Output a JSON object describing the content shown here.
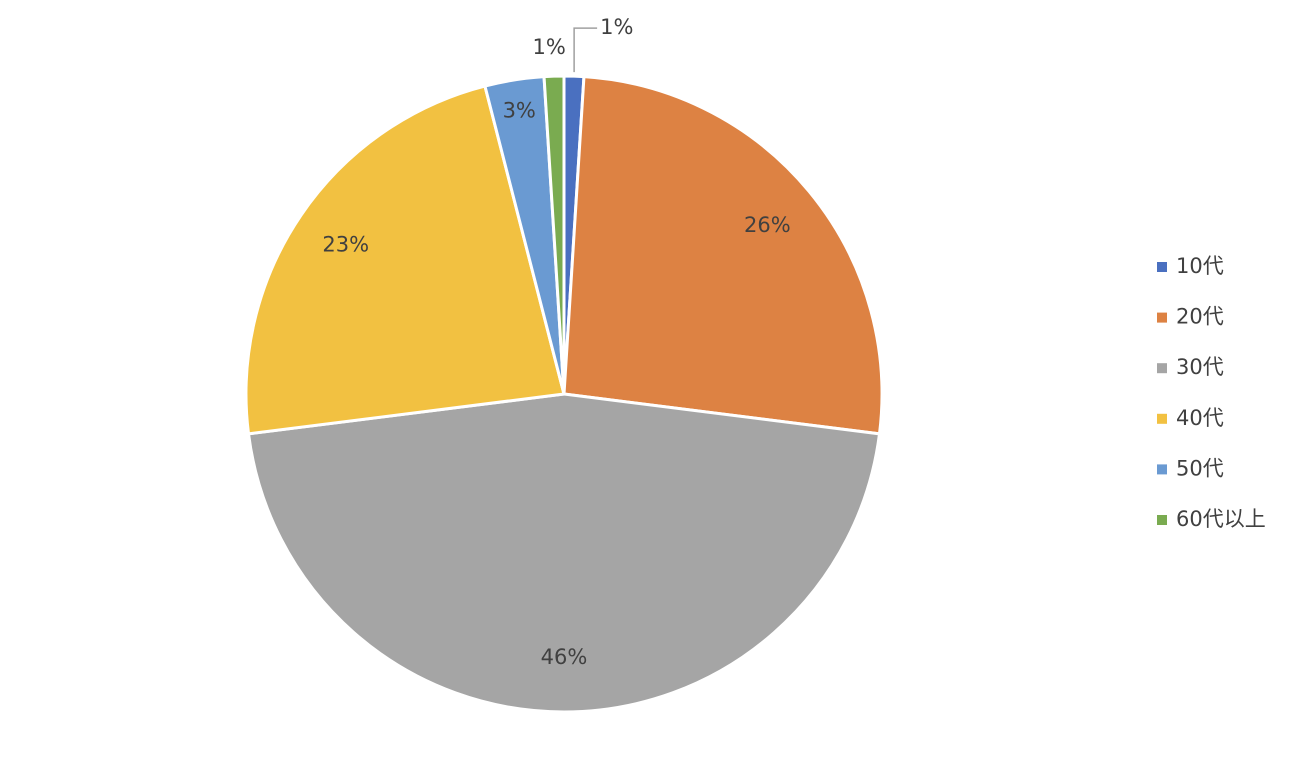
{
  "chart_data": {
    "type": "pie",
    "categories": [
      "10代",
      "20代",
      "30代",
      "40代",
      "50代",
      "60代以上"
    ],
    "values": [
      1,
      26,
      46,
      23,
      3,
      1
    ],
    "value_labels": [
      "1%",
      "26%",
      "46%",
      "23%",
      "3%",
      "1%"
    ],
    "colors": [
      "#4a70c0",
      "#dd8243",
      "#a5a5a5",
      "#f2c141",
      "#6a9ad2",
      "#7aab50"
    ],
    "legend": "right"
  }
}
